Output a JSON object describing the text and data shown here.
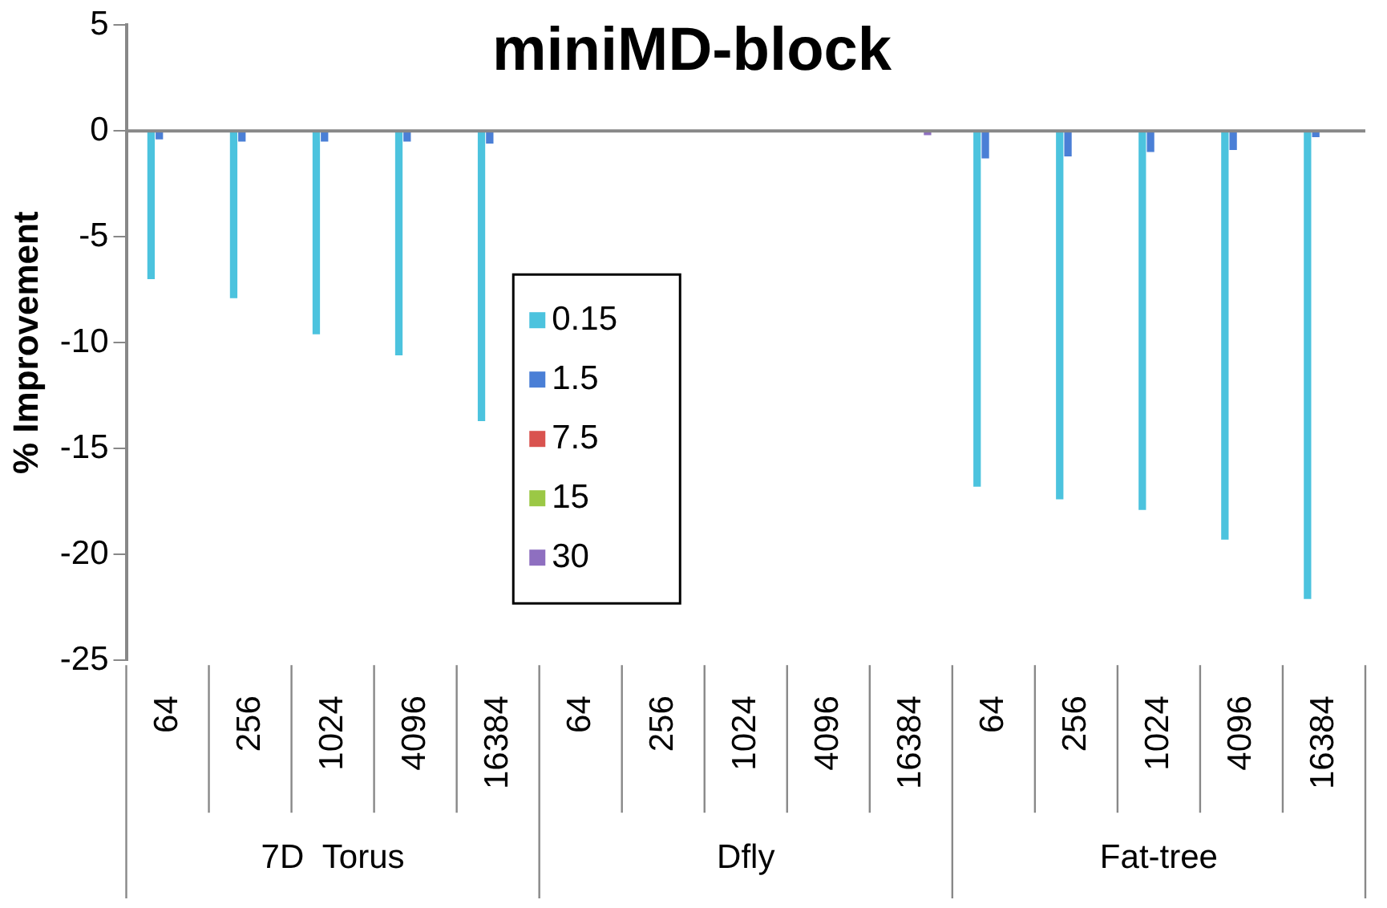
{
  "chart_data": {
    "type": "bar",
    "title": "miniMD-block",
    "ylabel": "% Improvement",
    "categories": [
      "64",
      "256",
      "1024",
      "4096",
      "16384",
      "64",
      "256",
      "1024",
      "4096",
      "16384",
      "64",
      "256",
      "1024",
      "4096",
      "16384"
    ],
    "annotations": [
      "7D  Torus",
      "Dfly",
      "Fat-tree"
    ],
    "series": [
      {
        "name": "0.15",
        "color": "#4cc3de",
        "values": [
          -7.0,
          -7.9,
          -9.6,
          -10.6,
          -13.7,
          0,
          0,
          0,
          0,
          0,
          -16.8,
          -17.4,
          -17.9,
          -19.3,
          -22.1
        ]
      },
      {
        "name": "1.5",
        "color": "#4a7fd6",
        "values": [
          -0.4,
          -0.5,
          -0.5,
          -0.5,
          -0.6,
          0,
          0,
          0,
          0,
          0,
          -1.3,
          -1.2,
          -1.0,
          -0.9,
          -0.3
        ]
      },
      {
        "name": "7.5",
        "color": "#d9534f",
        "values": [
          0,
          0,
          0,
          0,
          0,
          0,
          0,
          0,
          0,
          0,
          0,
          0,
          0,
          0,
          0
        ]
      },
      {
        "name": "15",
        "color": "#9bc845",
        "values": [
          0,
          0,
          0,
          0,
          0,
          0,
          0,
          0,
          0,
          0,
          0,
          0,
          0,
          0,
          0
        ]
      },
      {
        "name": "30",
        "color": "#8e6fc0",
        "values": [
          0,
          0,
          0,
          0,
          0,
          0,
          0,
          0,
          0,
          -0.2,
          0,
          0,
          0,
          0,
          0
        ]
      }
    ],
    "ylim": [
      -25,
      5
    ],
    "yticks": [
      -25,
      -20,
      -15,
      -10,
      -5,
      0,
      5
    ],
    "legend": "center"
  }
}
